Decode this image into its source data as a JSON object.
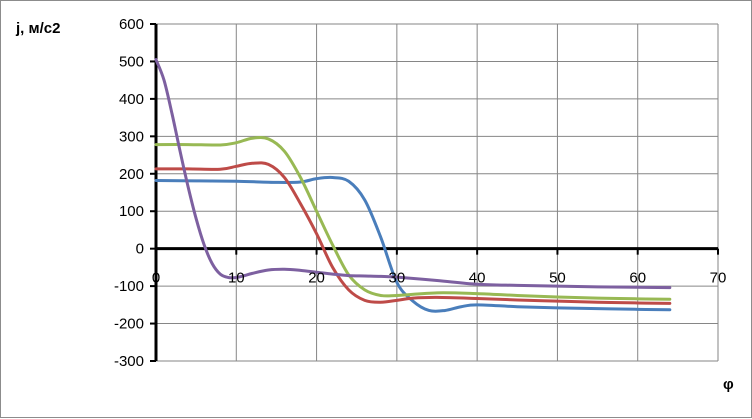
{
  "chart_data": {
    "type": "line",
    "xlabel": "φ",
    "ylabel": "j, м/с2",
    "xlim": [
      0,
      70
    ],
    "ylim": [
      -300,
      600
    ],
    "x_ticks": [
      0,
      10,
      20,
      30,
      40,
      50,
      60,
      70
    ],
    "y_ticks": [
      600,
      500,
      400,
      300,
      200,
      100,
      0,
      -100,
      -200,
      -300
    ],
    "grid": true,
    "legend": "none",
    "series": [
      {
        "color": "#4a7ebb",
        "points": [
          [
            0,
            182
          ],
          [
            5,
            181
          ],
          [
            10,
            180
          ],
          [
            15,
            177
          ],
          [
            18,
            178
          ],
          [
            20,
            187
          ],
          [
            22,
            190
          ],
          [
            24,
            180
          ],
          [
            26,
            130
          ],
          [
            28,
            30
          ],
          [
            30,
            -90
          ],
          [
            32,
            -140
          ],
          [
            34,
            -165
          ],
          [
            36,
            -165
          ],
          [
            38,
            -155
          ],
          [
            40,
            -150
          ],
          [
            45,
            -155
          ],
          [
            50,
            -158
          ],
          [
            55,
            -160
          ],
          [
            60,
            -162
          ],
          [
            64,
            -163
          ]
        ]
      },
      {
        "color": "#be4b48",
        "points": [
          [
            0,
            213
          ],
          [
            4,
            213
          ],
          [
            8,
            212
          ],
          [
            10,
            220
          ],
          [
            12,
            228
          ],
          [
            14,
            225
          ],
          [
            16,
            190
          ],
          [
            18,
            120
          ],
          [
            20,
            40
          ],
          [
            22,
            -50
          ],
          [
            24,
            -110
          ],
          [
            26,
            -138
          ],
          [
            28,
            -143
          ],
          [
            30,
            -138
          ],
          [
            32,
            -132
          ],
          [
            35,
            -130
          ],
          [
            40,
            -133
          ],
          [
            45,
            -137
          ],
          [
            50,
            -140
          ],
          [
            55,
            -143
          ],
          [
            60,
            -145
          ],
          [
            64,
            -146
          ]
        ]
      },
      {
        "color": "#98b954",
        "points": [
          [
            0,
            278
          ],
          [
            4,
            278
          ],
          [
            8,
            277
          ],
          [
            10,
            283
          ],
          [
            12,
            295
          ],
          [
            14,
            293
          ],
          [
            16,
            260
          ],
          [
            18,
            190
          ],
          [
            20,
            100
          ],
          [
            22,
            10
          ],
          [
            24,
            -70
          ],
          [
            26,
            -110
          ],
          [
            28,
            -125
          ],
          [
            30,
            -125
          ],
          [
            35,
            -118
          ],
          [
            40,
            -120
          ],
          [
            45,
            -125
          ],
          [
            50,
            -129
          ],
          [
            55,
            -132
          ],
          [
            60,
            -134
          ],
          [
            64,
            -135
          ]
        ]
      },
      {
        "color": "#7d60a0",
        "points": [
          [
            0,
            505
          ],
          [
            1,
            450
          ],
          [
            2,
            360
          ],
          [
            3,
            260
          ],
          [
            4,
            165
          ],
          [
            5,
            80
          ],
          [
            6,
            10
          ],
          [
            7,
            -40
          ],
          [
            8,
            -68
          ],
          [
            9,
            -77
          ],
          [
            10,
            -77
          ],
          [
            11,
            -72
          ],
          [
            12,
            -66
          ],
          [
            14,
            -57
          ],
          [
            16,
            -55
          ],
          [
            18,
            -58
          ],
          [
            20,
            -63
          ],
          [
            22,
            -68
          ],
          [
            24,
            -72
          ],
          [
            26,
            -73
          ],
          [
            28,
            -74
          ],
          [
            30,
            -76
          ],
          [
            35,
            -85
          ],
          [
            40,
            -95
          ],
          [
            45,
            -98
          ],
          [
            50,
            -100
          ],
          [
            55,
            -102
          ],
          [
            60,
            -103
          ],
          [
            64,
            -104
          ]
        ]
      }
    ]
  }
}
